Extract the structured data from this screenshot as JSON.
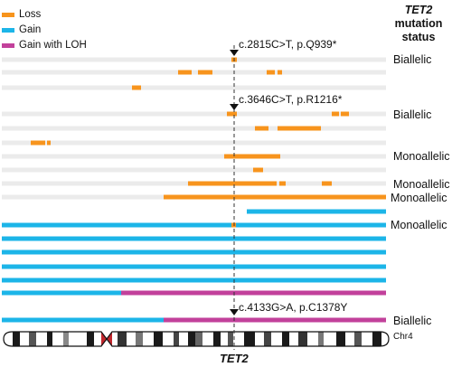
{
  "legend": [
    {
      "label": "Loss",
      "color": "#f7941d"
    },
    {
      "label": "Gain",
      "color": "#1cb5e8"
    },
    {
      "label": "Gain with LOH",
      "color": "#c2419b"
    }
  ],
  "header": {
    "gene": "TET2",
    "line2": "mutation",
    "line3": "status"
  },
  "colors": {
    "loss": "#f7941d",
    "gain": "#1cb5e8",
    "loh": "#c2419b",
    "track": "#ebebeb"
  },
  "mutations": [
    "c.2815C>T, p.Q939*",
    "c.3646C>T, p.R1216*",
    "c.4133G>A, p.C1378Y"
  ],
  "status_labels": [
    "Biallelic",
    "Biallelic",
    "Monoallelic",
    "Monoallelic",
    "Monoallelic",
    "Monoallelic",
    "Biallelic"
  ],
  "gene_label": "TET2",
  "chromosome_label": "Chr4"
}
